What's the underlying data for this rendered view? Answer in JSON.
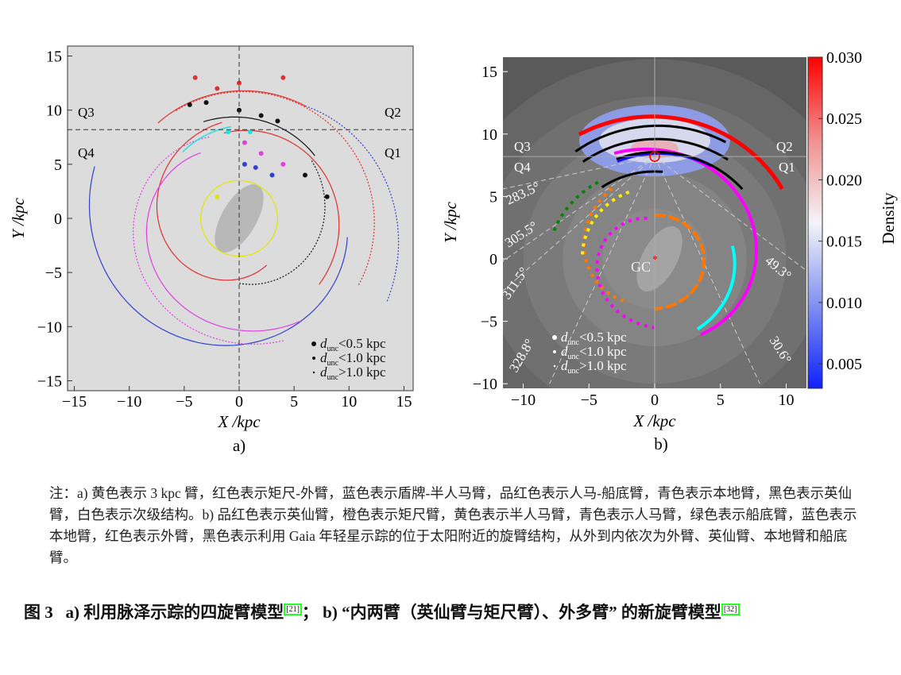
{
  "panel_a": {
    "chart_data": {
      "type": "scatter",
      "xlabel": "X /kpc",
      "ylabel": "Y /kpc",
      "xlim": [
        -16,
        16
      ],
      "ylim": [
        -16,
        16
      ],
      "xticks": [
        "−15",
        "−10",
        "−5",
        "0",
        "5",
        "10",
        "15"
      ],
      "yticks": [
        "15",
        "10",
        "5",
        "0",
        "−5",
        "−10",
        "−15"
      ],
      "quadrants": [
        "Q3",
        "Q2",
        "Q4",
        "Q1"
      ],
      "legend": [
        "<0.5 kpc",
        "<1.0 kpc",
        ">1.0 kpc"
      ],
      "legend_sub": "unc",
      "legend_var": "d",
      "arms_colors": {
        "yellow": "#e6e600",
        "red": "#e03030",
        "blue": "#3040d0",
        "magenta": "#e040e0",
        "cyan": "#20e0e0",
        "black": "#111111"
      }
    },
    "label": "a)"
  },
  "panel_b": {
    "chart_data": {
      "type": "scatter",
      "xlabel": "X /kpc",
      "ylabel": "Y /kpc",
      "xlim": [
        -12,
        11.5
      ],
      "ylim": [
        -10.2,
        16.2
      ],
      "xticks": [
        "−10",
        "−5",
        "0",
        "5",
        "10"
      ],
      "yticks": [
        "15",
        "10",
        "5",
        "0",
        "−5",
        "−10"
      ],
      "quadrants": [
        "Q3",
        "Q2",
        "Q4",
        "Q1"
      ],
      "longitudes": [
        "283.5°",
        "305.5°",
        "311.5°",
        "328.8°",
        "49.3°",
        "30.6°"
      ],
      "gc_label": "GC",
      "legend": [
        "<0.5 kpc",
        "<1.0 kpc",
        ">1.0 kpc"
      ],
      "legend_sub": "unc",
      "legend_var": "d",
      "colorbar": {
        "label": "Density",
        "ticks": [
          "0.030",
          "0.025",
          "0.020",
          "0.015",
          "0.010",
          "0.005"
        ],
        "range": [
          0.003,
          0.03
        ]
      }
    },
    "label": "b)"
  },
  "note": "注：a) 黄色表示 3 kpc 臂，红色表示矩尺-外臂，蓝色表示盾牌-半人马臂，品红色表示人马-船底臂，青色表示本地臂，黑色表示英仙臂，白色表示次级结构。b) 品红色表示英仙臂，橙色表示矩尺臂，黄色表示半人马臂，青色表示人马臂，绿色表示船底臂，蓝色表示本地臂，红色表示外臂，黑色表示利用 Gaia 年轻星示踪的位于太阳附近的旋臂结构，从外到内依次为外臂、英仙臂、本地臂和船底臂。",
  "caption": {
    "fig": "图 3",
    "part_a": "a) 利用脉泽示踪的四旋臂模型",
    "ref_a": "[21]",
    "sep": "；",
    "part_b": "b) “内两臂（英仙臂与矩尺臂）、外多臂” 的新旋臂模型",
    "ref_b": "[32]"
  }
}
